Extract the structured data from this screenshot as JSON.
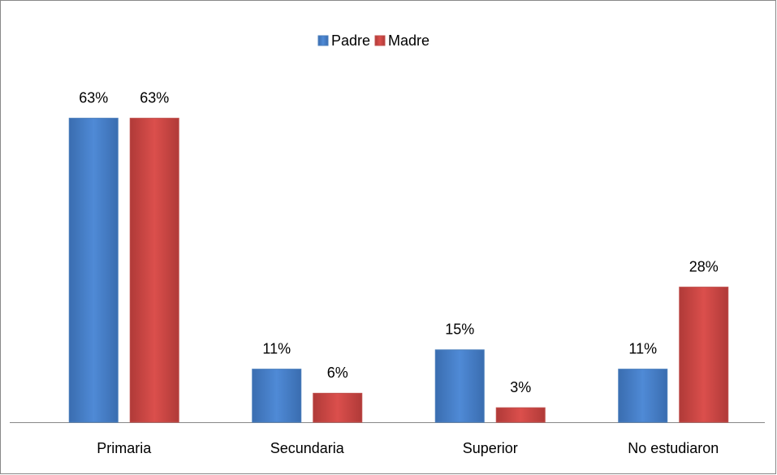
{
  "chart_data": {
    "type": "bar",
    "categories": [
      "Primaria",
      "Secundaria",
      "Superior",
      "No estudiaron"
    ],
    "series": [
      {
        "name": "Padre",
        "color": "#4a7ebb",
        "values": [
          63,
          11,
          15,
          11
        ],
        "value_labels": [
          "63%",
          "11%",
          "15%",
          "11%"
        ]
      },
      {
        "name": "Madre",
        "color": "#c0504d",
        "values": [
          63,
          6,
          3,
          28
        ],
        "value_labels": [
          "63%",
          "6%",
          "3%",
          "28%"
        ]
      }
    ],
    "ylim": [
      0,
      70
    ],
    "legend": "top"
  }
}
